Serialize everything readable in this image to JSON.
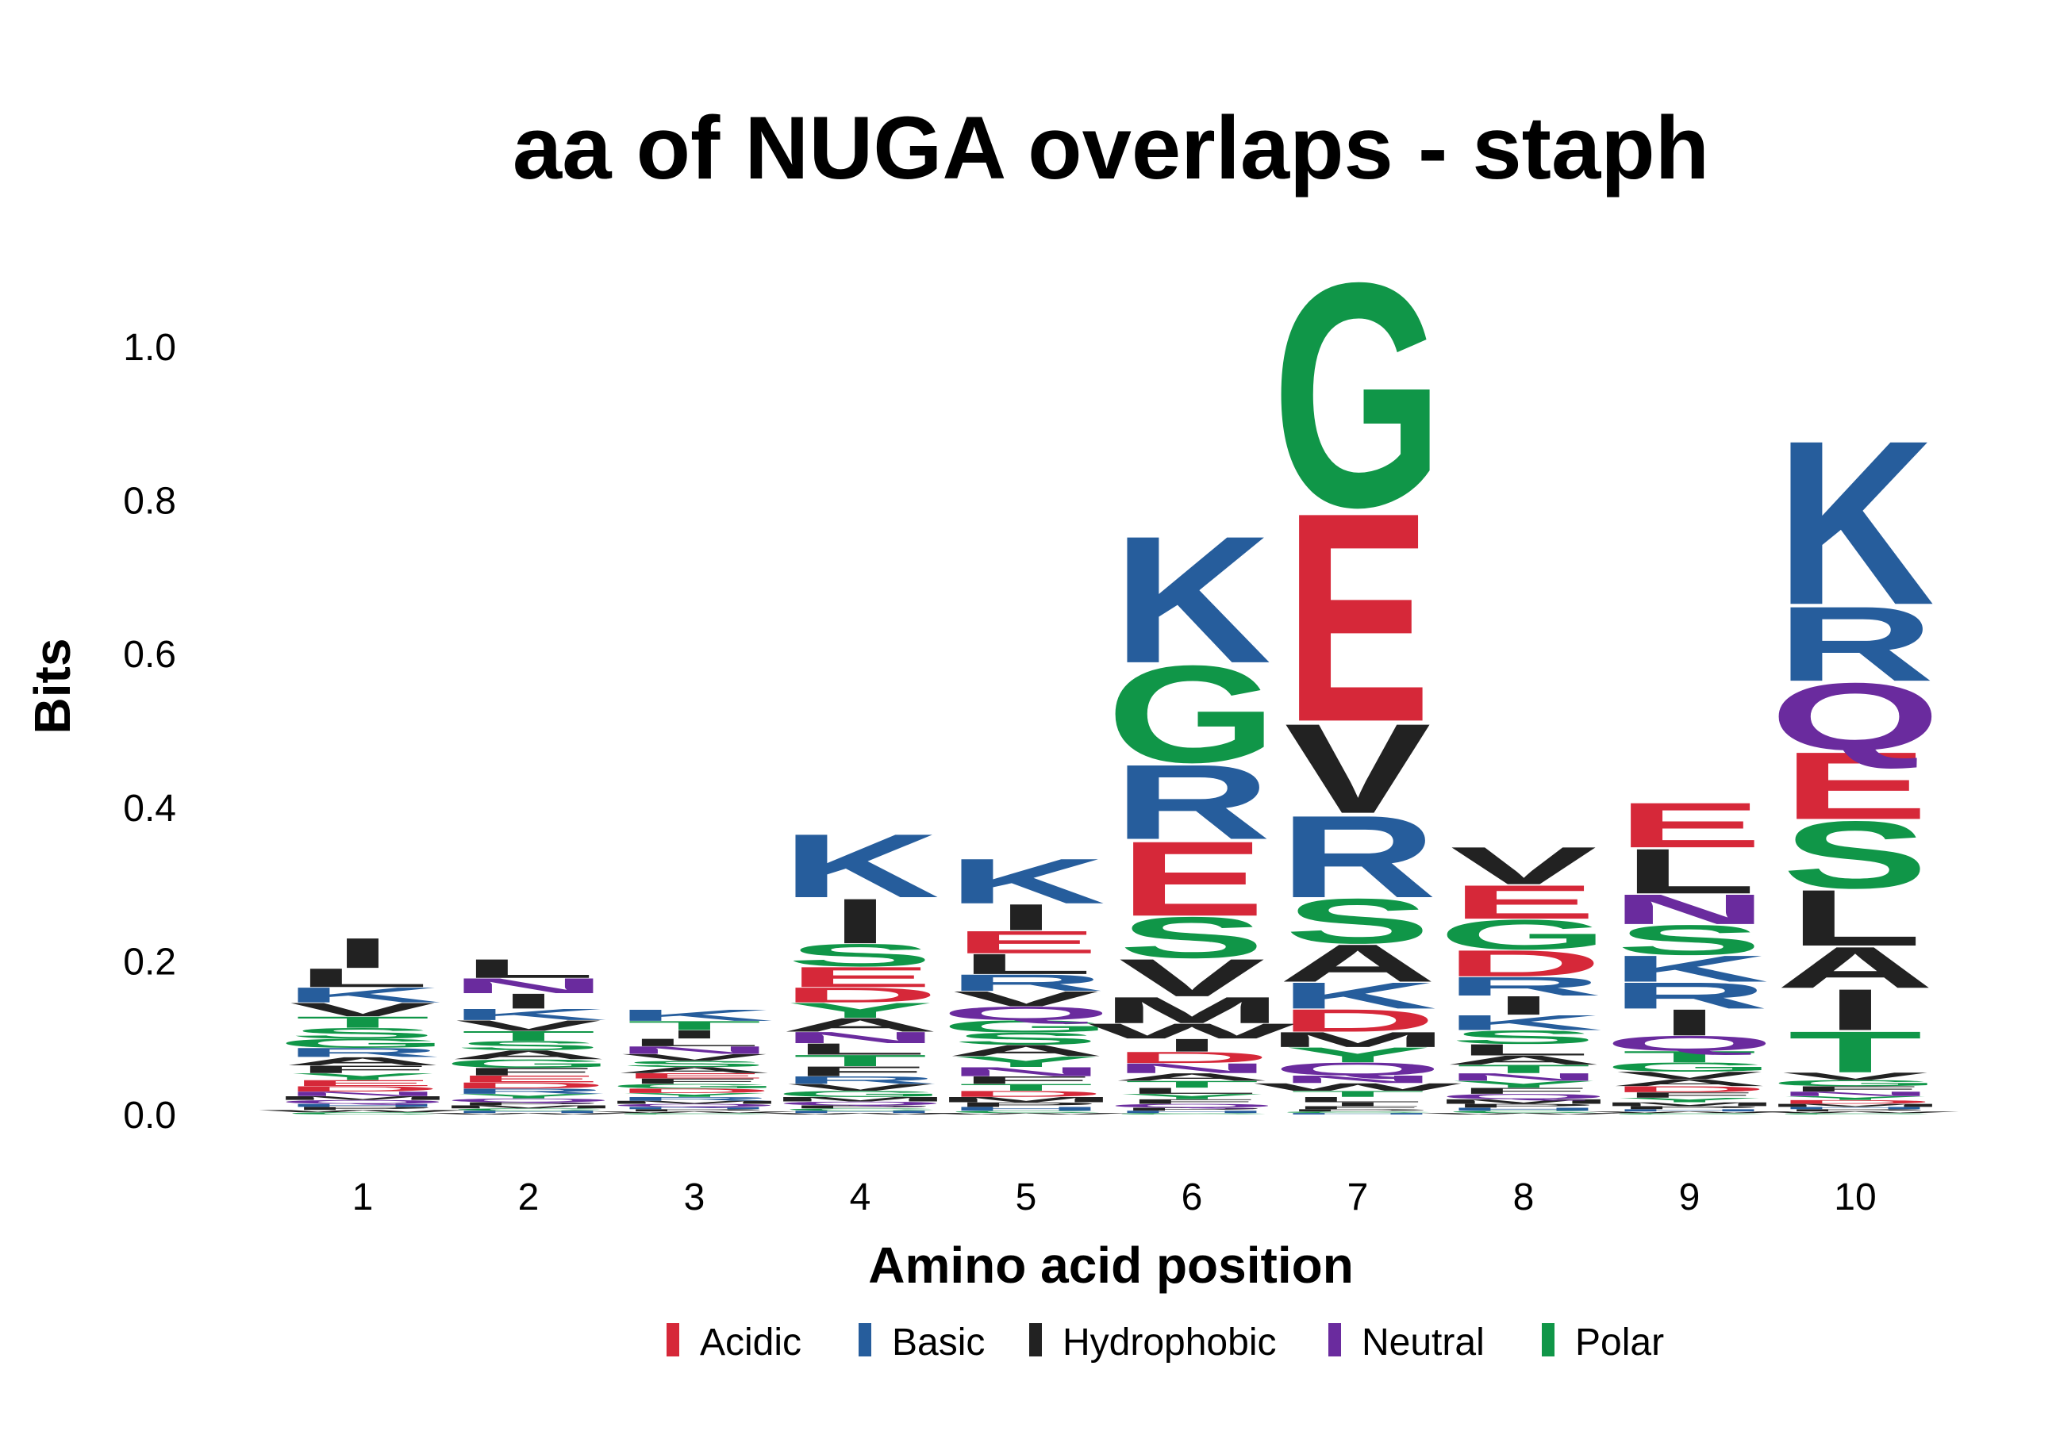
{
  "chart_data": {
    "type": "sequence_logo",
    "title": "aa of NUGA overlaps - staph",
    "xlabel": "Amino acid position",
    "ylabel": "Bits",
    "ylim": [
      0,
      1.1
    ],
    "y_ticks": [
      "0.0",
      "0.2",
      "0.4",
      "0.6",
      "0.8",
      "1.0"
    ],
    "grid": false,
    "legend_position": "bottom",
    "legend": [
      {
        "name": "Acidic",
        "color": "#d62839"
      },
      {
        "name": "Basic",
        "color": "#265d9c"
      },
      {
        "name": "Hydrophobic",
        "color": "#222222"
      },
      {
        "name": "Neutral",
        "color": "#6a2b9e"
      },
      {
        "name": "Polar",
        "color": "#109648"
      }
    ],
    "aa_class": {
      "D": "Acidic",
      "E": "Acidic",
      "K": "Basic",
      "R": "Basic",
      "H": "Basic",
      "A": "Hydrophobic",
      "V": "Hydrophobic",
      "L": "Hydrophobic",
      "I": "Hydrophobic",
      "M": "Hydrophobic",
      "F": "Hydrophobic",
      "W": "Hydrophobic",
      "P": "Hydrophobic",
      "N": "Neutral",
      "Q": "Neutral",
      "S": "Polar",
      "G": "Polar",
      "T": "Polar",
      "Y": "Polar",
      "C": "Polar"
    },
    "positions": [
      {
        "x": "1",
        "letters": [
          {
            "aa": "I",
            "h": 0.04
          },
          {
            "aa": "L",
            "h": 0.025
          },
          {
            "aa": "K",
            "h": 0.02
          },
          {
            "aa": "V",
            "h": 0.018
          },
          {
            "aa": "T",
            "h": 0.015
          },
          {
            "aa": "S",
            "h": 0.014
          },
          {
            "aa": "R",
            "h": 0.012
          },
          {
            "aa": "G",
            "h": 0.012
          },
          {
            "aa": "A",
            "h": 0.011
          },
          {
            "aa": "F",
            "h": 0.01
          },
          {
            "aa": "Y",
            "h": 0.009
          },
          {
            "aa": "E",
            "h": 0.008
          },
          {
            "aa": "D",
            "h": 0.007
          },
          {
            "aa": "N",
            "h": 0.006
          },
          {
            "aa": "Q",
            "h": 0.005
          },
          {
            "aa": "M",
            "h": 0.005
          },
          {
            "aa": "P",
            "h": 0.004
          },
          {
            "aa": "H",
            "h": 0.004
          },
          {
            "aa": "C",
            "h": 0.003
          },
          {
            "aa": "W",
            "h": 0.003
          }
        ]
      },
      {
        "x": "2",
        "letters": [
          {
            "aa": "L",
            "h": 0.025
          },
          {
            "aa": "I",
            "h": 0.02
          },
          {
            "aa": "N",
            "h": 0.02
          },
          {
            "aa": "K",
            "h": 0.015
          },
          {
            "aa": "V",
            "h": 0.014
          },
          {
            "aa": "T",
            "h": 0.013
          },
          {
            "aa": "A",
            "h": 0.012
          },
          {
            "aa": "S",
            "h": 0.012
          },
          {
            "aa": "G",
            "h": 0.011
          },
          {
            "aa": "F",
            "h": 0.01
          },
          {
            "aa": "E",
            "h": 0.009
          },
          {
            "aa": "D",
            "h": 0.008
          },
          {
            "aa": "R",
            "h": 0.007
          },
          {
            "aa": "Y",
            "h": 0.006
          },
          {
            "aa": "Q",
            "h": 0.005
          },
          {
            "aa": "M",
            "h": 0.004
          },
          {
            "aa": "P",
            "h": 0.004
          },
          {
            "aa": "H",
            "h": 0.003
          },
          {
            "aa": "C",
            "h": 0.003
          },
          {
            "aa": "W",
            "h": 0.002
          }
        ]
      },
      {
        "x": "3",
        "letters": [
          {
            "aa": "K",
            "h": 0.015
          },
          {
            "aa": "T",
            "h": 0.012
          },
          {
            "aa": "I",
            "h": 0.011
          },
          {
            "aa": "N",
            "h": 0.01
          },
          {
            "aa": "L",
            "h": 0.01
          },
          {
            "aa": "V",
            "h": 0.009
          },
          {
            "aa": "A",
            "h": 0.008
          },
          {
            "aa": "S",
            "h": 0.008
          },
          {
            "aa": "F",
            "h": 0.007
          },
          {
            "aa": "E",
            "h": 0.007
          },
          {
            "aa": "D",
            "h": 0.006
          },
          {
            "aa": "G",
            "h": 0.006
          },
          {
            "aa": "R",
            "h": 0.005
          },
          {
            "aa": "Y",
            "h": 0.005
          },
          {
            "aa": "Q",
            "h": 0.004
          },
          {
            "aa": "M",
            "h": 0.004
          },
          {
            "aa": "P",
            "h": 0.003
          },
          {
            "aa": "H",
            "h": 0.003
          },
          {
            "aa": "C",
            "h": 0.002
          },
          {
            "aa": "W",
            "h": 0.002
          }
        ]
      },
      {
        "x": "4",
        "letters": [
          {
            "aa": "K",
            "h": 0.085
          },
          {
            "aa": "I",
            "h": 0.06
          },
          {
            "aa": "S",
            "h": 0.03
          },
          {
            "aa": "E",
            "h": 0.027
          },
          {
            "aa": "Y",
            "h": 0.02
          },
          {
            "aa": "D",
            "h": 0.02
          },
          {
            "aa": "A",
            "h": 0.018
          },
          {
            "aa": "T",
            "h": 0.015
          },
          {
            "aa": "L",
            "h": 0.015
          },
          {
            "aa": "F",
            "h": 0.013
          },
          {
            "aa": "N",
            "h": 0.015
          },
          {
            "aa": "R",
            "h": 0.01
          },
          {
            "aa": "V",
            "h": 0.009
          },
          {
            "aa": "G",
            "h": 0.008
          },
          {
            "aa": "M",
            "h": 0.006
          },
          {
            "aa": "Q",
            "h": 0.005
          },
          {
            "aa": "P",
            "h": 0.004
          },
          {
            "aa": "H",
            "h": 0.003
          },
          {
            "aa": "C",
            "h": 0.003
          },
          {
            "aa": "W",
            "h": 0.002
          }
        ]
      },
      {
        "x": "5",
        "letters": [
          {
            "aa": "K",
            "h": 0.06
          },
          {
            "aa": "I",
            "h": 0.035
          },
          {
            "aa": "E",
            "h": 0.03
          },
          {
            "aa": "L",
            "h": 0.027
          },
          {
            "aa": "R",
            "h": 0.022
          },
          {
            "aa": "V",
            "h": 0.02
          },
          {
            "aa": "Q",
            "h": 0.018
          },
          {
            "aa": "S",
            "h": 0.016
          },
          {
            "aa": "A",
            "h": 0.015
          },
          {
            "aa": "G",
            "h": 0.016
          },
          {
            "aa": "Y",
            "h": 0.014
          },
          {
            "aa": "N",
            "h": 0.012
          },
          {
            "aa": "F",
            "h": 0.01
          },
          {
            "aa": "T",
            "h": 0.009
          },
          {
            "aa": "D",
            "h": 0.008
          },
          {
            "aa": "M",
            "h": 0.007
          },
          {
            "aa": "P",
            "h": 0.006
          },
          {
            "aa": "H",
            "h": 0.005
          },
          {
            "aa": "C",
            "h": 0.003
          },
          {
            "aa": "W",
            "h": 0.002
          }
        ]
      },
      {
        "x": "6",
        "letters": [
          {
            "aa": "K",
            "h": 0.17
          },
          {
            "aa": "G",
            "h": 0.13
          },
          {
            "aa": "E",
            "h": 0.1
          },
          {
            "aa": "R",
            "h": 0.1
          },
          {
            "aa": "S",
            "h": 0.055
          },
          {
            "aa": "V",
            "h": 0.05
          },
          {
            "aa": "M",
            "h": 0.035
          },
          {
            "aa": "W",
            "h": 0.02
          },
          {
            "aa": "I",
            "h": 0.017
          },
          {
            "aa": "D",
            "h": 0.015
          },
          {
            "aa": "N",
            "h": 0.013
          },
          {
            "aa": "A",
            "h": 0.01
          },
          {
            "aa": "T",
            "h": 0.009
          },
          {
            "aa": "L",
            "h": 0.008
          },
          {
            "aa": "Y",
            "h": 0.007
          },
          {
            "aa": "F",
            "h": 0.006
          },
          {
            "aa": "Q",
            "h": 0.005
          },
          {
            "aa": "P",
            "h": 0.004
          },
          {
            "aa": "H",
            "h": 0.003
          },
          {
            "aa": "C",
            "h": 0.002
          }
        ]
      },
      {
        "x": "7",
        "letters": [
          {
            "aa": "G",
            "h": 0.3
          },
          {
            "aa": "E",
            "h": 0.28
          },
          {
            "aa": "V",
            "h": 0.12
          },
          {
            "aa": "R",
            "h": 0.11
          },
          {
            "aa": "S",
            "h": 0.06
          },
          {
            "aa": "A",
            "h": 0.05
          },
          {
            "aa": "K",
            "h": 0.035
          },
          {
            "aa": "D",
            "h": 0.03
          },
          {
            "aa": "Y",
            "h": 0.02
          },
          {
            "aa": "M",
            "h": 0.02
          },
          {
            "aa": "Q",
            "h": 0.017
          },
          {
            "aa": "W",
            "h": 0.01
          },
          {
            "aa": "T",
            "h": 0.008
          },
          {
            "aa": "L",
            "h": 0.007
          },
          {
            "aa": "N",
            "h": 0.01
          },
          {
            "aa": "I",
            "h": 0.005
          },
          {
            "aa": "F",
            "h": 0.004
          },
          {
            "aa": "P",
            "h": 0.003
          },
          {
            "aa": "H",
            "h": 0.002
          },
          {
            "aa": "C",
            "h": 0.002
          }
        ]
      },
      {
        "x": "8",
        "letters": [
          {
            "aa": "V",
            "h": 0.05
          },
          {
            "aa": "E",
            "h": 0.045
          },
          {
            "aa": "G",
            "h": 0.04
          },
          {
            "aa": "D",
            "h": 0.035
          },
          {
            "aa": "I",
            "h": 0.025
          },
          {
            "aa": "R",
            "h": 0.025
          },
          {
            "aa": "K",
            "h": 0.02
          },
          {
            "aa": "S",
            "h": 0.018
          },
          {
            "aa": "L",
            "h": 0.015
          },
          {
            "aa": "A",
            "h": 0.012
          },
          {
            "aa": "T",
            "h": 0.011
          },
          {
            "aa": "N",
            "h": 0.01
          },
          {
            "aa": "Y",
            "h": 0.009
          },
          {
            "aa": "F",
            "h": 0.008
          },
          {
            "aa": "Q",
            "h": 0.007
          },
          {
            "aa": "M",
            "h": 0.006
          },
          {
            "aa": "P",
            "h": 0.005
          },
          {
            "aa": "H",
            "h": 0.004
          },
          {
            "aa": "C",
            "h": 0.003
          },
          {
            "aa": "W",
            "h": 0.002
          }
        ]
      },
      {
        "x": "9",
        "letters": [
          {
            "aa": "L",
            "h": 0.06
          },
          {
            "aa": "E",
            "h": 0.06
          },
          {
            "aa": "S",
            "h": 0.04
          },
          {
            "aa": "I",
            "h": 0.035
          },
          {
            "aa": "N",
            "h": 0.04
          },
          {
            "aa": "R",
            "h": 0.035
          },
          {
            "aa": "K",
            "h": 0.035
          },
          {
            "aa": "Q",
            "h": 0.02
          },
          {
            "aa": "T",
            "h": 0.015
          },
          {
            "aa": "G",
            "h": 0.012
          },
          {
            "aa": "V",
            "h": 0.01
          },
          {
            "aa": "A",
            "h": 0.009
          },
          {
            "aa": "D",
            "h": 0.008
          },
          {
            "aa": "F",
            "h": 0.007
          },
          {
            "aa": "Y",
            "h": 0.006
          },
          {
            "aa": "M",
            "h": 0.005
          },
          {
            "aa": "P",
            "h": 0.004
          },
          {
            "aa": "H",
            "h": 0.003
          },
          {
            "aa": "C",
            "h": 0.002
          },
          {
            "aa": "W",
            "h": 0.002
          }
        ]
      },
      {
        "x": "10",
        "letters": [
          {
            "aa": "K",
            "h": 0.22
          },
          {
            "aa": "S",
            "h": 0.09
          },
          {
            "aa": "E",
            "h": 0.09
          },
          {
            "aa": "Q",
            "h": 0.09
          },
          {
            "aa": "R",
            "h": 0.1
          },
          {
            "aa": "L",
            "h": 0.075
          },
          {
            "aa": "T",
            "h": 0.055
          },
          {
            "aa": "I",
            "h": 0.055
          },
          {
            "aa": "A",
            "h": 0.055
          },
          {
            "aa": "V",
            "h": 0.01
          },
          {
            "aa": "G",
            "h": 0.008
          },
          {
            "aa": "F",
            "h": 0.007
          },
          {
            "aa": "N",
            "h": 0.006
          },
          {
            "aa": "D",
            "h": 0.005
          },
          {
            "aa": "Y",
            "h": 0.005
          },
          {
            "aa": "M",
            "h": 0.004
          },
          {
            "aa": "P",
            "h": 0.003
          },
          {
            "aa": "H",
            "h": 0.003
          },
          {
            "aa": "C",
            "h": 0.002
          },
          {
            "aa": "W",
            "h": 0.002
          }
        ]
      }
    ]
  }
}
